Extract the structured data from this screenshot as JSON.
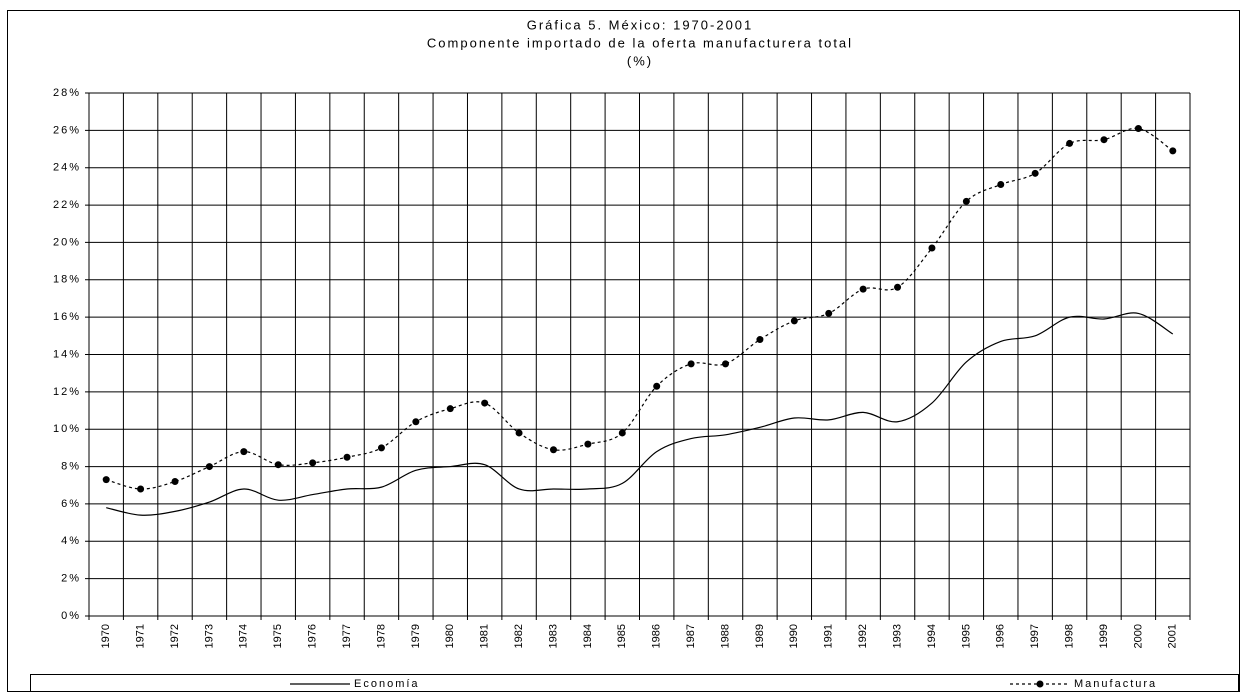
{
  "chart_data": {
    "type": "line",
    "title": "Gráfica 5. México: 1970-2001",
    "subtitle": "Componente importado de la oferta manufacturera total",
    "unit_label": "(%)",
    "categories": [
      "1970",
      "1971",
      "1972",
      "1973",
      "1974",
      "1975",
      "1976",
      "1977",
      "1978",
      "1979",
      "1980",
      "1981",
      "1982",
      "1983",
      "1984",
      "1985",
      "1986",
      "1987",
      "1988",
      "1989",
      "1990",
      "1991",
      "1992",
      "1993",
      "1994",
      "1995",
      "1996",
      "1997",
      "1998",
      "1999",
      "2000",
      "2001"
    ],
    "series": [
      {
        "name": "Economía",
        "color": "#000000",
        "dash": "solid",
        "markers": false,
        "values": [
          5.8,
          5.4,
          5.6,
          6.1,
          6.8,
          6.2,
          6.5,
          6.8,
          6.9,
          7.8,
          8.0,
          8.1,
          6.8,
          6.8,
          6.8,
          7.1,
          8.8,
          9.5,
          9.7,
          10.1,
          10.6,
          10.5,
          10.9,
          10.4,
          11.4,
          13.6,
          14.7,
          15.0,
          16.0,
          15.9,
          16.2,
          15.1
        ]
      },
      {
        "name": "Manufactura",
        "color": "#000000",
        "dash": "dotted",
        "markers": true,
        "values": [
          7.3,
          6.8,
          7.2,
          8.0,
          8.8,
          8.1,
          8.2,
          8.5,
          9.0,
          10.4,
          11.1,
          11.4,
          9.8,
          8.9,
          9.2,
          9.8,
          12.3,
          13.5,
          13.5,
          14.8,
          15.8,
          16.2,
          17.5,
          17.6,
          19.7,
          22.2,
          23.1,
          23.7,
          25.3,
          25.5,
          26.1,
          24.9
        ]
      }
    ],
    "ylim": [
      0,
      28
    ],
    "yticks": [
      {
        "value": 0,
        "label": "0%"
      },
      {
        "value": 2,
        "label": "2%"
      },
      {
        "value": 4,
        "label": "4%"
      },
      {
        "value": 6,
        "label": "6%"
      },
      {
        "value": 8,
        "label": "8%"
      },
      {
        "value": 10,
        "label": "10%"
      },
      {
        "value": 12,
        "label": "12%"
      },
      {
        "value": 14,
        "label": "14%"
      },
      {
        "value": 16,
        "label": "16%"
      },
      {
        "value": 18,
        "label": "18%"
      },
      {
        "value": 20,
        "label": "20%"
      },
      {
        "value": 22,
        "label": "22%"
      },
      {
        "value": 24,
        "label": "24%"
      },
      {
        "value": 26,
        "label": "26%"
      },
      {
        "value": 28,
        "label": "28%"
      }
    ],
    "grid": true,
    "legend": "bottom"
  }
}
